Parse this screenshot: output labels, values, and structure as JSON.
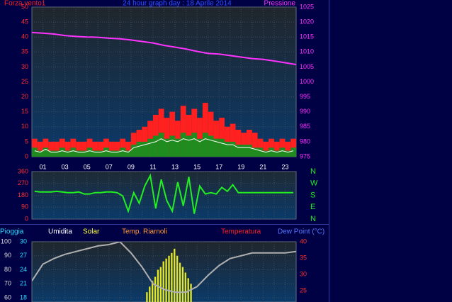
{
  "chart_data": [
    {
      "type": "combo",
      "title": "24 hour graph day : 18 Aprile 2014",
      "ylabel": "Forza vento1",
      "y2label": "Pressione",
      "xlim": [
        0,
        24
      ],
      "xticks": [
        {
          "value": 1,
          "label": "01"
        },
        {
          "value": 3,
          "label": "03"
        },
        {
          "value": 5,
          "label": "05"
        },
        {
          "value": 7,
          "label": "07"
        },
        {
          "value": 9,
          "label": "09"
        },
        {
          "value": 11,
          "label": "11"
        },
        {
          "value": 13,
          "label": "13"
        },
        {
          "value": 15,
          "label": "15"
        },
        {
          "value": 17,
          "label": "17"
        },
        {
          "value": 19,
          "label": "19"
        },
        {
          "value": 21,
          "label": "21"
        },
        {
          "value": 23,
          "label": "23"
        }
      ],
      "ylim": [
        0,
        50
      ],
      "yticks": [
        0,
        5,
        10,
        15,
        20,
        25,
        30,
        35,
        40,
        45,
        50
      ],
      "y2lim": [
        975,
        1025
      ],
      "y2ticks": [
        975,
        980,
        985,
        990,
        995,
        1000,
        1005,
        1010,
        1015,
        1020,
        1025
      ],
      "grid": true,
      "series": [
        {
          "type": "bar",
          "color": "#ff2020",
          "x": [
            0.25,
            0.75,
            1.25,
            1.75,
            2.25,
            2.75,
            3.25,
            3.75,
            4.25,
            4.75,
            5.25,
            5.75,
            6.25,
            6.75,
            7.25,
            7.75,
            8.25,
            8.75,
            9.25,
            9.75,
            10.25,
            10.75,
            11.25,
            11.75,
            12.25,
            12.75,
            13.25,
            13.75,
            14.25,
            14.75,
            15.25,
            15.75,
            16.25,
            16.75,
            17.25,
            17.75,
            18.25,
            18.75,
            19.25,
            19.75,
            20.25,
            20.75,
            21.25,
            21.75,
            22.25,
            22.75,
            23.25,
            23.75
          ],
          "values": [
            6,
            5,
            6,
            5,
            5,
            6,
            5,
            6,
            5,
            5,
            6,
            5,
            5,
            6,
            5,
            5,
            6,
            5,
            8,
            9,
            10,
            12,
            14,
            16,
            13,
            15,
            12,
            17,
            14,
            16,
            13,
            18,
            15,
            12,
            13,
            10,
            11,
            9,
            8,
            9,
            8,
            6,
            5,
            6,
            5,
            6,
            5,
            6
          ]
        },
        {
          "type": "bar",
          "color": "#1e8c1e",
          "x": [
            0.25,
            0.75,
            1.25,
            1.75,
            2.25,
            2.75,
            3.25,
            3.75,
            4.25,
            4.75,
            5.25,
            5.75,
            6.25,
            6.75,
            7.25,
            7.75,
            8.25,
            8.75,
            9.25,
            9.75,
            10.25,
            10.75,
            11.25,
            11.75,
            12.25,
            12.75,
            13.25,
            13.75,
            14.25,
            14.75,
            15.25,
            15.75,
            16.25,
            16.75,
            17.25,
            17.75,
            18.25,
            18.75,
            19.25,
            19.75,
            20.25,
            20.75,
            21.25,
            21.75,
            22.25,
            22.75,
            23.25,
            23.75
          ],
          "values": [
            3,
            2,
            3,
            2,
            2,
            3,
            2,
            3,
            2,
            2,
            3,
            2,
            2,
            3,
            2,
            2,
            3,
            2,
            4,
            5,
            5,
            6,
            7,
            8,
            6,
            7,
            6,
            8,
            7,
            8,
            6,
            8,
            7,
            6,
            6,
            5,
            5,
            4,
            4,
            4,
            3,
            3,
            2,
            3,
            2,
            3,
            2,
            3
          ]
        },
        {
          "type": "line",
          "color": "#ffffff",
          "x": [
            0.25,
            0.75,
            1.25,
            1.75,
            2.25,
            2.75,
            3.25,
            3.75,
            4.25,
            4.75,
            5.25,
            5.75,
            6.25,
            6.75,
            7.25,
            7.75,
            8.25,
            8.75,
            9.25,
            9.75,
            10.25,
            10.75,
            11.25,
            11.75,
            12.25,
            12.75,
            13.25,
            13.75,
            14.25,
            14.75,
            15.25,
            15.75,
            16.25,
            16.75,
            17.25,
            17.75,
            18.25,
            18.75,
            19.25,
            19.75,
            20.25,
            20.75,
            21.25,
            21.75,
            22.25,
            22.75,
            23.25,
            23.75
          ],
          "values": [
            2,
            1.5,
            2.5,
            1.5,
            1.5,
            2,
            1.5,
            2,
            1.5,
            1.5,
            2,
            1.5,
            1.5,
            2,
            1.5,
            1.5,
            2,
            1.5,
            3,
            3.5,
            4,
            4.5,
            5,
            6,
            5,
            5.5,
            5,
            6,
            5.5,
            6,
            5,
            6,
            5.5,
            5,
            4.5,
            4,
            4,
            3,
            3,
            3,
            2.5,
            2,
            1.5,
            2,
            1.5,
            2,
            1.5,
            2
          ]
        },
        {
          "type": "line",
          "axis": "y2",
          "color": "#ff33ff",
          "x": [
            0,
            1,
            2,
            3,
            4,
            5,
            6,
            7,
            8,
            9,
            10,
            11,
            12,
            13,
            14,
            15,
            16,
            17,
            18,
            19,
            20,
            21,
            22,
            23,
            24
          ],
          "values": [
            1016.5,
            1016.3,
            1016,
            1015.5,
            1015.2,
            1015,
            1014.9,
            1014.6,
            1014.4,
            1014,
            1013.5,
            1013,
            1012.2,
            1011.6,
            1011,
            1010.2,
            1009.5,
            1009.3,
            1008.8,
            1008.3,
            1007.8,
            1007.5,
            1007,
            1006.4,
            1005.8
          ]
        }
      ]
    },
    {
      "type": "line",
      "xlim": [
        0,
        24
      ],
      "ylim": [
        0,
        360
      ],
      "yticks": [
        0,
        90,
        180,
        270,
        360
      ],
      "y2lim": [
        0,
        360
      ],
      "y2ticks": [
        {
          "value": 0,
          "label": "N"
        },
        {
          "value": 90,
          "label": "E"
        },
        {
          "value": 180,
          "label": "S"
        },
        {
          "value": 270,
          "label": "W"
        },
        {
          "value": 360,
          "label": "N"
        }
      ],
      "grid": true,
      "series": [
        {
          "color": "#22ee22",
          "x": [
            0.25,
            0.75,
            1.25,
            1.75,
            2.25,
            2.75,
            3.25,
            3.75,
            4.25,
            4.75,
            5.25,
            5.75,
            6.25,
            6.75,
            7.25,
            7.75,
            8.25,
            8.75,
            9.25,
            9.75,
            10.25,
            10.75,
            11.25,
            11.75,
            12.25,
            12.75,
            13.25,
            13.75,
            14.25,
            14.75,
            15.25,
            15.75,
            16.25,
            16.75,
            17.25,
            17.75,
            18.25,
            18.75,
            19.25,
            19.75,
            20.25,
            20.75,
            21.25,
            21.75,
            22.25,
            22.75,
            23.25,
            23.75
          ],
          "values": [
            210,
            205,
            205,
            205,
            210,
            205,
            200,
            200,
            205,
            190,
            190,
            200,
            200,
            205,
            205,
            200,
            175,
            60,
            200,
            120,
            250,
            330,
            80,
            300,
            140,
            60,
            280,
            100,
            320,
            40,
            250,
            190,
            200,
            190,
            240,
            210,
            260,
            200,
            200,
            200,
            200,
            200,
            200,
            200,
            200,
            200,
            200,
            200
          ]
        }
      ]
    },
    {
      "type": "combo",
      "xlim": [
        0,
        24
      ],
      "legend_items": [
        {
          "text": "Pioggia",
          "color": "#22ddff"
        },
        {
          "text": "Umidita",
          "color": "#ffffff"
        },
        {
          "text": "Solar",
          "color": "#ffff44"
        },
        {
          "text": "Temp. Riarnoli",
          "color": "#ff9933"
        },
        {
          "text": "Temperatura",
          "color": "#ff2020"
        },
        {
          "text": "Dew Point (°C)",
          "color": "#5577ff"
        }
      ],
      "ylim": [
        57,
        100
      ],
      "yticks": [
        60,
        70,
        80,
        90,
        100
      ],
      "y3lim": [
        17.1,
        30
      ],
      "y3ticks": [
        18,
        21,
        24,
        27,
        30
      ],
      "y2lim": [
        21.5,
        40
      ],
      "y2ticks": [
        25,
        30,
        35,
        40
      ],
      "grid": true,
      "series": [
        {
          "type": "bar",
          "color": "#e8e820",
          "x": [
            10.5,
            10.75,
            11,
            11.25,
            11.5,
            11.75,
            12,
            12.25,
            12.5,
            12.75,
            13,
            13.25,
            13.5,
            13.75,
            14,
            14.25,
            14.5
          ],
          "values": [
            64,
            68,
            72,
            75,
            80,
            82,
            86,
            88,
            90,
            92,
            95,
            90,
            85,
            82,
            78,
            74,
            70
          ]
        },
        {
          "type": "line",
          "color": "#b0b0b0",
          "x": [
            0,
            1,
            2,
            3,
            4,
            5,
            6,
            7,
            8,
            9,
            10,
            11,
            12,
            13,
            14,
            15,
            16,
            17,
            18,
            19,
            20,
            21,
            22,
            23,
            24
          ],
          "values": [
            72,
            84,
            88,
            91,
            93,
            95,
            97,
            98,
            100,
            92,
            82,
            70,
            66,
            64,
            64,
            68,
            76,
            83,
            88,
            90,
            92,
            92,
            92,
            92,
            93
          ]
        }
      ]
    }
  ]
}
